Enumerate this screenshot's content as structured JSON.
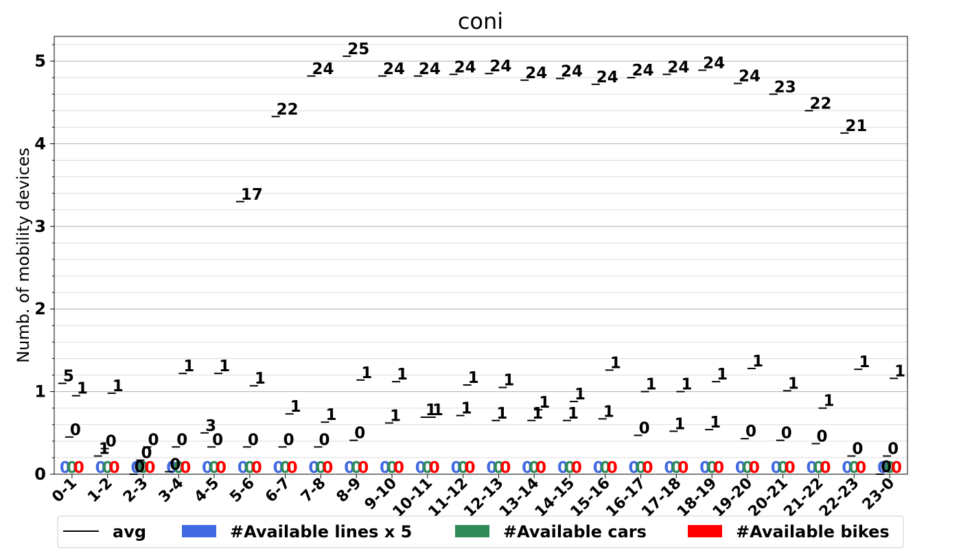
{
  "chart_data": {
    "type": "bar",
    "title": "coni",
    "ylabel": "Numb. of mobility devices",
    "xlabel": "",
    "ylim": [
      0,
      5.3
    ],
    "yticks": [
      "0",
      "1",
      "2",
      "3",
      "4",
      "5"
    ],
    "grid": true,
    "legend_placement": "bottom",
    "categories": [
      "0-1",
      "1-2",
      "2-3",
      "3-4",
      "4-5",
      "5-6",
      "6-7",
      "7-8",
      "8-9",
      "9-10",
      "10-11",
      "11-12",
      "12-13",
      "13-14",
      "14-15",
      "15-16",
      "16-17",
      "17-18",
      "18-19",
      "19-20",
      "20-21",
      "21-22",
      "22-23",
      "23-0"
    ],
    "avg": {
      "name": "avg",
      "color": "#000000",
      "values": [
        [
          1.1,
          0.45,
          0.95
        ],
        [
          0.22,
          0.31,
          0.98
        ],
        [
          0.0,
          0.17,
          0.33
        ],
        [
          0.03,
          0.33,
          1.22
        ],
        [
          0.5,
          0.33,
          1.22
        ],
        [
          3.3,
          0.33,
          1.07
        ],
        [
          4.33,
          0.33,
          0.73
        ],
        [
          4.82,
          0.33,
          0.63
        ],
        [
          5.06,
          0.41,
          1.14
        ],
        [
          4.82,
          0.62,
          1.12
        ],
        [
          4.82,
          0.69,
          0.69
        ],
        [
          4.84,
          0.71,
          1.08
        ],
        [
          4.85,
          0.65,
          1.05
        ],
        [
          4.77,
          0.65,
          0.78
        ],
        [
          4.79,
          0.65,
          0.88
        ],
        [
          4.72,
          0.67,
          1.26
        ],
        [
          4.8,
          0.47,
          1.0
        ],
        [
          4.84,
          0.52,
          1.0
        ],
        [
          4.89,
          0.54,
          1.12
        ],
        [
          4.73,
          0.43,
          1.28
        ],
        [
          4.6,
          0.41,
          1.01
        ],
        [
          4.4,
          0.37,
          0.8
        ],
        [
          4.13,
          0.22,
          1.27
        ],
        [
          0.0,
          0.22,
          1.16
        ]
      ],
      "labels": [
        [
          "5",
          "0",
          "1"
        ],
        [
          "1",
          "0",
          "1"
        ],
        [
          "0",
          "0",
          "0"
        ],
        [
          "0",
          "0",
          "1"
        ],
        [
          "3",
          "0",
          "1"
        ],
        [
          "17",
          "0",
          "1"
        ],
        [
          "22",
          "0",
          "1"
        ],
        [
          "24",
          "0",
          "1"
        ],
        [
          "25",
          "0",
          "1"
        ],
        [
          "24",
          "1",
          "1"
        ],
        [
          "24",
          "1",
          "1"
        ],
        [
          "24",
          "1",
          "1"
        ],
        [
          "24",
          "1",
          "1"
        ],
        [
          "24",
          "1",
          "1"
        ],
        [
          "24",
          "1",
          "1"
        ],
        [
          "24",
          "1",
          "1"
        ],
        [
          "24",
          "0",
          "1"
        ],
        [
          "24",
          "1",
          "1"
        ],
        [
          "24",
          "1",
          "1"
        ],
        [
          "24",
          "0",
          "1"
        ],
        [
          "23",
          "0",
          "1"
        ],
        [
          "22",
          "0",
          "1"
        ],
        [
          "21",
          "0",
          "1"
        ],
        [
          "0",
          "0",
          "1"
        ]
      ]
    },
    "series": [
      {
        "name": "#Available lines x 5",
        "color": "#4169e1",
        "values": [
          0,
          0,
          0,
          0,
          0,
          0,
          0,
          0,
          0,
          0,
          0,
          0,
          0,
          0,
          0,
          0,
          0,
          0,
          0,
          0,
          0,
          0,
          0,
          0
        ],
        "labels": [
          "0",
          "0",
          "0",
          "0",
          "0",
          "0",
          "0",
          "0",
          "0",
          "0",
          "0",
          "0",
          "0",
          "0",
          "0",
          "0",
          "0",
          "0",
          "0",
          "0",
          "0",
          "0",
          "0",
          "0"
        ]
      },
      {
        "name": "#Available cars",
        "color": "#2e8b57",
        "values": [
          0,
          0,
          0,
          0,
          0,
          0,
          0,
          0,
          0,
          0,
          0,
          0,
          0,
          0,
          0,
          0,
          0,
          0,
          0,
          0,
          0,
          0,
          0,
          0
        ],
        "labels": [
          "0",
          "0",
          "0",
          "0",
          "0",
          "0",
          "0",
          "0",
          "0",
          "0",
          "0",
          "0",
          "0",
          "0",
          "0",
          "0",
          "0",
          "0",
          "0",
          "0",
          "0",
          "0",
          "0",
          "0"
        ]
      },
      {
        "name": "#Available bikes",
        "color": "#ff0000",
        "values": [
          0,
          0,
          0,
          0,
          0,
          0,
          0,
          0,
          0,
          0,
          0,
          0,
          0,
          0,
          0,
          0,
          0,
          0,
          0,
          0,
          0,
          0,
          0,
          0
        ],
        "labels": [
          "0",
          "0",
          "0",
          "0",
          "0",
          "0",
          "0",
          "0",
          "0",
          "0",
          "0",
          "0",
          "0",
          "0",
          "0",
          "0",
          "0",
          "0",
          "0",
          "0",
          "0",
          "0",
          "0",
          "0"
        ]
      }
    ]
  }
}
